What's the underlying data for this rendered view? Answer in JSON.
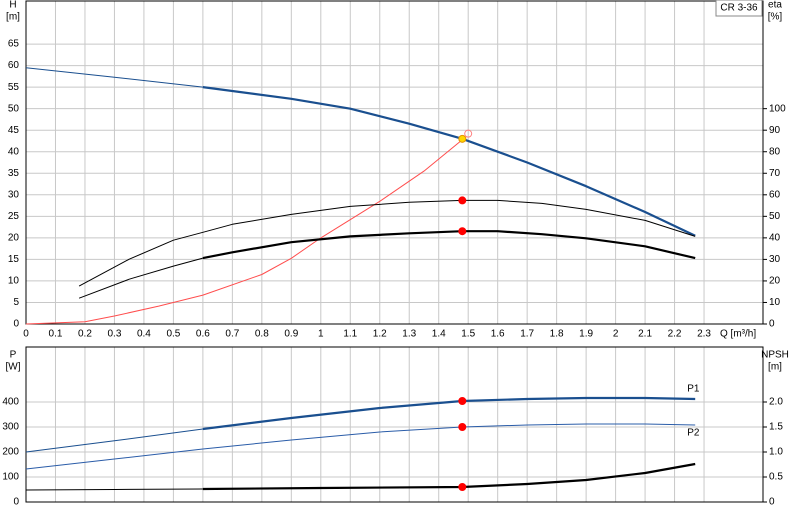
{
  "chart_data": [
    {
      "type": "line",
      "title": "CR 3-36",
      "ylabel": "H",
      "yunit": "[m]",
      "y2label": "eta",
      "y2unit": "[%]",
      "xlabel": "Q [m³/h]",
      "xlim": [
        0,
        2.5
      ],
      "xticks": [
        0,
        0.1,
        0.2,
        0.3,
        0.4,
        0.5,
        0.6,
        0.7,
        0.8,
        0.9,
        1,
        1.1,
        1.2,
        1.3,
        1.4,
        1.5,
        1.6,
        1.7,
        1.8,
        1.9,
        2,
        2.1,
        2.2,
        2.3
      ],
      "show_xtick_labels": true,
      "ylim": [
        0,
        75
      ],
      "yticks": [
        0,
        5,
        10,
        15,
        20,
        25,
        30,
        35,
        40,
        45,
        50,
        55,
        60,
        65
      ],
      "y2lim": [
        0,
        150
      ],
      "y2ticks": [
        0,
        10,
        20,
        30,
        40,
        50,
        60,
        70,
        80,
        90,
        100
      ],
      "grid": true,
      "series": [
        {
          "color": "#1a4f8f",
          "style": "thin",
          "axis": "y",
          "x": [
            0,
            0.3,
            0.6
          ],
          "values": [
            59.5,
            57.3,
            55
          ]
        },
        {
          "color": "#1a4f8f",
          "style": "thick",
          "axis": "y",
          "x": [
            0.6,
            0.9,
            1.1,
            1.3,
            1.48,
            1.7,
            1.9,
            2.1,
            2.27
          ],
          "values": [
            55,
            52.3,
            50,
            46.5,
            43,
            37.5,
            32,
            26,
            20.5
          ]
        },
        {
          "color": "#ff4d4d",
          "style": "thin",
          "axis": "y2",
          "x": [
            0,
            0.2,
            0.3,
            0.45,
            0.6,
            0.8,
            0.9,
            1.0,
            1.2,
            1.35,
            1.48
          ],
          "values": [
            0,
            1,
            3.7,
            8.3,
            13.4,
            23,
            30.5,
            40,
            57,
            71,
            85.6
          ]
        },
        {
          "color": "#000000",
          "style": "thin",
          "axis": "y2",
          "x": [
            0.18,
            0.35,
            0.5,
            0.6,
            0.7,
            0.9,
            1.1,
            1.3,
            1.48,
            1.6,
            1.75,
            1.9,
            2.1,
            2.27
          ],
          "values": [
            17.6,
            30.1,
            38.9,
            42.6,
            46.3,
            50.9,
            54.6,
            56.5,
            57.4,
            57.4,
            56,
            53.2,
            48.1,
            40.7
          ]
        },
        {
          "color": "#000000",
          "style": "thin",
          "axis": "y2",
          "x": [
            0.18,
            0.35,
            0.5,
            0.6
          ],
          "values": [
            12,
            20.8,
            26.9,
            30.6
          ]
        },
        {
          "color": "#000000",
          "style": "thick",
          "axis": "y2",
          "x": [
            0.6,
            0.7,
            0.9,
            1.1,
            1.3,
            1.48,
            1.6,
            1.75,
            1.9,
            2.1,
            2.27
          ],
          "values": [
            30.6,
            33.3,
            38,
            40.7,
            42.1,
            43.1,
            43.1,
            41.7,
            39.8,
            36.1,
            30.6
          ]
        }
      ],
      "markers": [
        {
          "x": 1.5,
          "y": 44.2,
          "axis": "y",
          "color": "#ff8080",
          "fill": "none"
        },
        {
          "x": 1.48,
          "y": 43,
          "axis": "y",
          "color": "#e69500",
          "fill": "#ffd700"
        },
        {
          "x": 1.48,
          "y": 57.4,
          "axis": "y2",
          "color": "#ff0000",
          "fill": "#ff0000"
        },
        {
          "x": 1.48,
          "y": 43.1,
          "axis": "y2",
          "color": "#ff0000",
          "fill": "#ff0000"
        }
      ]
    },
    {
      "type": "line",
      "ylabel": "P",
      "yunit": "[W]",
      "y2label": "NPSH",
      "y2unit": "[m]",
      "xlim": [
        0,
        2.5
      ],
      "xticks": [
        0,
        0.1,
        0.2,
        0.3,
        0.4,
        0.5,
        0.6,
        0.7,
        0.8,
        0.9,
        1,
        1.1,
        1.2,
        1.3,
        1.4,
        1.5,
        1.6,
        1.7,
        1.8,
        1.9,
        2,
        2.1,
        2.2,
        2.3
      ],
      "show_xtick_labels": false,
      "ylim": [
        0,
        620
      ],
      "yticks": [
        0,
        100,
        200,
        300,
        400
      ],
      "y2lim": [
        0,
        3.1
      ],
      "y2ticks": [
        0,
        0.5,
        {
          "value": 1,
          "label": "1.0"
        },
        1.5,
        {
          "value": 2,
          "label": "2.0"
        }
      ],
      "grid": true,
      "series": [
        {
          "color": "#1a4f8f",
          "style": "thin",
          "axis": "y",
          "x": [
            0,
            0.3,
            0.6
          ],
          "values": [
            200,
            245,
            292
          ]
        },
        {
          "name": "P1",
          "label_pos": "above",
          "color": "#1a4f8f",
          "style": "thick",
          "axis": "y",
          "x": [
            0.6,
            0.9,
            1.2,
            1.48,
            1.7,
            1.9,
            2.1,
            2.27
          ],
          "values": [
            292,
            336,
            376,
            404,
            412,
            416,
            416,
            412
          ]
        },
        {
          "name": "P2",
          "label_pos": "below",
          "color": "#2a5ca8",
          "style": "thin",
          "axis": "y",
          "x": [
            0,
            0.3,
            0.6,
            0.9,
            1.2,
            1.48,
            1.7,
            1.9,
            2.1,
            2.27
          ],
          "values": [
            132,
            172,
            212,
            248,
            280,
            300,
            308,
            312,
            312,
            308
          ]
        },
        {
          "color": "#000000",
          "style": "thin",
          "axis": "y2",
          "x": [
            0,
            0.3,
            0.6
          ],
          "values": [
            0.24,
            0.25,
            0.26
          ]
        },
        {
          "color": "#000000",
          "style": "thick",
          "axis": "y2",
          "x": [
            0.6,
            1.0,
            1.48,
            1.7,
            1.9,
            2.1,
            2.27
          ],
          "values": [
            0.26,
            0.28,
            0.3,
            0.36,
            0.44,
            0.58,
            0.76
          ]
        }
      ],
      "markers": [
        {
          "x": 1.48,
          "y": 404,
          "axis": "y",
          "color": "#ff0000",
          "fill": "#ff0000"
        },
        {
          "x": 1.48,
          "y": 300,
          "axis": "y",
          "color": "#ff0000",
          "fill": "#ff0000"
        },
        {
          "x": 1.48,
          "y": 0.3,
          "axis": "y2",
          "color": "#ff0000",
          "fill": "#ff0000"
        }
      ]
    }
  ]
}
